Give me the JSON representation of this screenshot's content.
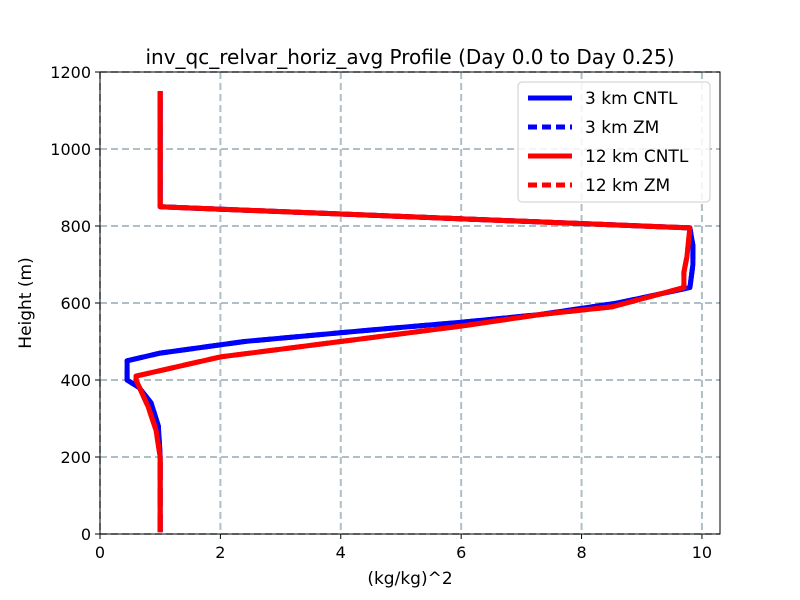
{
  "chart_data": {
    "type": "line",
    "title": "inv_qc_relvar_horiz_avg Profile (Day 0.0 to Day 0.25)",
    "xlabel": "(kg/kg)^2",
    "ylabel": "Height (m)",
    "xlim": [
      0,
      10.3
    ],
    "ylim": [
      0,
      1200
    ],
    "xticks": [
      0,
      2,
      4,
      6,
      8,
      10
    ],
    "yticks": [
      0,
      200,
      400,
      600,
      800,
      1000,
      1200
    ],
    "grid": true,
    "legend_position": "top-right",
    "series": [
      {
        "name": "3 km CNTL",
        "color": "#0000ff",
        "linestyle": "solid",
        "x": [
          1.0,
          1.0,
          1.0,
          0.97,
          0.85,
          0.65,
          0.45,
          0.45,
          1.0,
          2.4,
          4.5,
          6.0,
          7.3,
          8.6,
          9.8,
          9.85,
          9.85,
          9.8,
          1.0,
          1.0,
          1.0
        ],
        "y": [
          5,
          100,
          200,
          280,
          340,
          380,
          400,
          450,
          470,
          500,
          530,
          550,
          570,
          600,
          640,
          700,
          750,
          795,
          850,
          1000,
          1150
        ]
      },
      {
        "name": "3 km ZM",
        "color": "#0000ff",
        "linestyle": "dashed",
        "x": [
          1.0,
          1.0,
          1.0,
          0.97,
          0.85,
          0.65,
          0.45,
          0.45,
          1.0,
          2.4,
          4.5,
          6.0,
          7.3,
          8.6,
          9.8,
          9.85,
          9.85,
          9.8,
          1.0,
          1.0,
          1.0
        ],
        "y": [
          5,
          100,
          200,
          280,
          340,
          380,
          400,
          450,
          470,
          500,
          530,
          550,
          570,
          600,
          640,
          700,
          750,
          795,
          850,
          1000,
          1150
        ]
      },
      {
        "name": "12 km CNTL",
        "color": "#ff0000",
        "linestyle": "solid",
        "x": [
          1.0,
          1.0,
          1.0,
          0.93,
          0.8,
          0.6,
          0.6,
          2.0,
          4.0,
          6.0,
          7.3,
          8.5,
          9.7,
          9.7,
          9.75,
          9.8,
          1.0,
          1.0,
          1.0
        ],
        "y": [
          5,
          100,
          200,
          270,
          330,
          400,
          410,
          460,
          500,
          540,
          570,
          590,
          640,
          680,
          720,
          795,
          850,
          1000,
          1150
        ]
      },
      {
        "name": "12 km ZM",
        "color": "#ff0000",
        "linestyle": "dashed",
        "x": [
          1.0,
          1.0,
          1.0,
          0.93,
          0.8,
          0.6,
          0.6,
          2.0,
          4.0,
          6.0,
          7.3,
          8.5,
          9.7,
          9.7,
          9.75,
          9.8,
          1.0,
          1.0,
          1.0
        ],
        "y": [
          5,
          100,
          200,
          270,
          330,
          400,
          410,
          460,
          500,
          540,
          570,
          590,
          640,
          680,
          720,
          795,
          850,
          1000,
          1150
        ]
      }
    ]
  }
}
